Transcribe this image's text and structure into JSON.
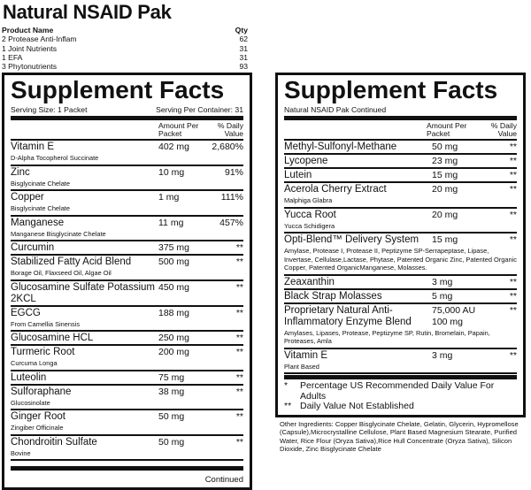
{
  "title": "Natural NSAID Pak",
  "products": {
    "header_name": "Product Name",
    "header_qty": "Qty",
    "items": [
      {
        "name": "2 Protease Anti-Inflam",
        "qty": "62"
      },
      {
        "name": "1 Joint Nutrients",
        "qty": "31"
      },
      {
        "name": "1 EFA",
        "qty": "31"
      },
      {
        "name": "3 Phytonutrients",
        "qty": "93"
      }
    ]
  },
  "left": {
    "heading": "Supplement Facts",
    "serving_size": "Serving Size: 1 Packet",
    "serving_per": "Serving Per Container: 31",
    "col_amount": "Amount Per Packet",
    "col_dv": "% Daily Value",
    "rows": [
      {
        "name": "Vitamin E",
        "sub": "D-Alpha Tocopherol Succinate",
        "amount": "402 mg",
        "dv": "2,680%"
      },
      {
        "name": "Zinc",
        "sub": "Bisglycinate Chelate",
        "amount": "10 mg",
        "dv": "91%"
      },
      {
        "name": "Copper",
        "sub": "Bisglycinate Chelate",
        "amount": "1 mg",
        "dv": "111%"
      },
      {
        "name": "Manganese",
        "sub": "Manganese Bisglycinate Chelate",
        "amount": "11 mg",
        "dv": "457%"
      },
      {
        "name": "Curcumin",
        "sub": "",
        "amount": "375 mg",
        "dv": "**"
      },
      {
        "name": "Stabilized Fatty Acid Blend",
        "sub": "Borage Oil, Flaxseed Oil, Algae Oil",
        "amount": "500 mg",
        "dv": "**"
      },
      {
        "name": "Glucosamine Sulfate Potassium 2KCL",
        "sub": "",
        "amount": "450 mg",
        "dv": "**"
      },
      {
        "name": "EGCG",
        "sub": "From Camellia Sinensis",
        "amount": "188 mg",
        "dv": "**"
      },
      {
        "name": "Glucosamine HCL",
        "sub": "",
        "amount": "250 mg",
        "dv": "**"
      },
      {
        "name": "Turmeric Root",
        "sub": "Curcuma Longa",
        "amount": "200 mg",
        "dv": "**"
      },
      {
        "name": "Luteolin",
        "sub": "",
        "amount": "75 mg",
        "dv": "**"
      },
      {
        "name": "Sulforaphane",
        "sub": "Glucosinolate",
        "amount": "38 mg",
        "dv": "**"
      },
      {
        "name": "Ginger Root",
        "sub": "Zingiber Officinale",
        "amount": "50 mg",
        "dv": "**"
      },
      {
        "name": "Chondroitin Sulfate",
        "sub": "Bovine",
        "amount": "50 mg",
        "dv": "**"
      }
    ],
    "continued": "Continued"
  },
  "right": {
    "heading": "Supplement Facts",
    "subtitle": "Natural NSAID Pak Continued",
    "col_amount": "Amount Per Packet",
    "col_dv": "% Daily Value",
    "rows": [
      {
        "name": "Methyl-Sulfonyl-Methane",
        "sub": "",
        "amount": "50 mg",
        "dv": "**"
      },
      {
        "name": "Lycopene",
        "sub": "",
        "amount": "23 mg",
        "dv": "**"
      },
      {
        "name": "Lutein",
        "sub": "",
        "amount": "15 mg",
        "dv": "**"
      },
      {
        "name": "Acerola Cherry Extract",
        "sub": "Malphiga Glabra",
        "amount": "20 mg",
        "dv": "**"
      },
      {
        "name": "Yucca Root",
        "sub": "Yucca Schidigera",
        "amount": "20 mg",
        "dv": "**"
      },
      {
        "name": "Opti-Blend™ Delivery System",
        "sub": "Amylase, Protease I, Protease II, Peptizyme SP-Serrapeptase, Lipase, Invertase, Cellulase,Lactase, Phytase, Patented Organic Zinc, Patented Organic Copper, Patented OrganicManganese, Molasses.",
        "amount": "15 mg",
        "dv": "**"
      },
      {
        "name": "Zeaxanthin",
        "sub": "",
        "amount": "3 mg",
        "dv": "**"
      },
      {
        "name": "Black Strap Molasses",
        "sub": "",
        "amount": "5 mg",
        "dv": "**"
      },
      {
        "name": "Proprietary Natural Anti-Inflammatory Enzyme Blend",
        "sub": "Amylases, Lipases, Protease, Peptizyme SP, Rutin, Bromelain, Papain, Proteases, Amla",
        "amount": "75,000 AU 100 mg",
        "dv": "**"
      },
      {
        "name": "Vitamin E",
        "sub": "Plant Based",
        "amount": "3 mg",
        "dv": "**"
      }
    ],
    "footnotes": [
      {
        "mark": "*",
        "text": "Percentage US Recommended Daily Value For Adults"
      },
      {
        "mark": "**",
        "text": "Daily Value Not Established"
      }
    ]
  },
  "other_ingredients": "Other Ingredients: Copper Bisglycinate Chelate, Gelatin, Glycerin, Hypromellose (Capsule),Microcrystalline Cellulose, Plant Based Magnesium Stearate, Purified Water, Rice Flour (Oryza Sativa),Rice Hull Concentrate (Oryza Sativa), Silicon Dioxide, Zinc Bisglycinate Chelate"
}
